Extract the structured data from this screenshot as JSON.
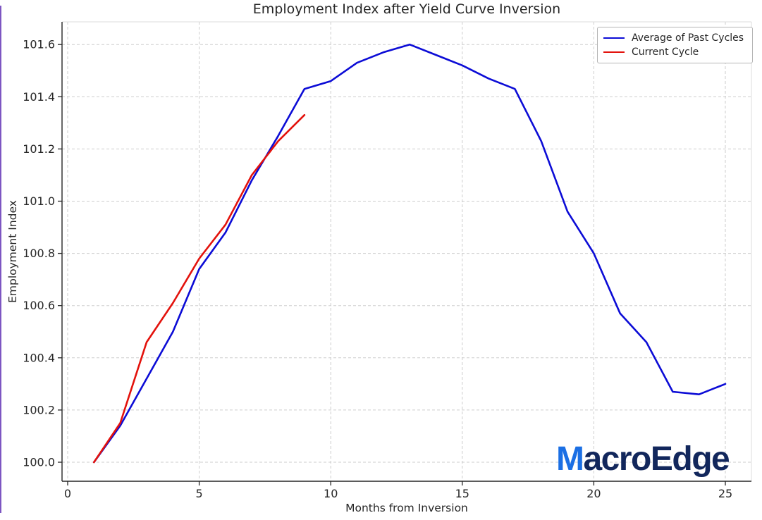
{
  "frame": {
    "accent_edge_color": "#7d56c2"
  },
  "watermark": {
    "prefix": "M",
    "rest": "acroEdge",
    "prefix_color": "#1b6fe4",
    "rest_color": "#12275c"
  },
  "chart_data": {
    "type": "line",
    "title": "Employment Index after Yield Curve Inversion",
    "xlabel": "Months from Inversion",
    "ylabel": "Employment Index",
    "xlim": [
      -0.2,
      26
    ],
    "ylim": [
      99.93,
      101.69
    ],
    "x_ticks": [
      0,
      5,
      10,
      15,
      20,
      25
    ],
    "y_ticks": [
      100.0,
      100.2,
      100.4,
      100.6,
      100.8,
      101.0,
      101.2,
      101.4,
      101.6
    ],
    "x_tick_labels": [
      "0",
      "5",
      "10",
      "15",
      "20",
      "25"
    ],
    "y_tick_labels": [
      "100.0",
      "100.2",
      "100.4",
      "100.6",
      "100.8",
      "101.0",
      "101.2",
      "101.4",
      "101.6"
    ],
    "grid": true,
    "grid_style": "dashed",
    "legend_position": "upper right",
    "series": [
      {
        "name": "Average of Past Cycles",
        "color": "#0c0cd6",
        "x": [
          1,
          2,
          3,
          4,
          5,
          6,
          7,
          8,
          9,
          10,
          11,
          12,
          13,
          14,
          15,
          16,
          17,
          18,
          19,
          20,
          21,
          22,
          23,
          24,
          25
        ],
        "values": [
          100.0,
          100.14,
          100.32,
          100.5,
          100.74,
          100.88,
          101.08,
          101.25,
          101.43,
          101.46,
          101.53,
          101.57,
          101.6,
          101.56,
          101.52,
          101.47,
          101.43,
          101.23,
          100.96,
          100.8,
          100.57,
          100.46,
          100.27,
          100.26,
          100.3
        ]
      },
      {
        "name": "Current Cycle",
        "color": "#e3120c",
        "x": [
          1,
          2,
          3,
          4,
          5,
          6,
          7,
          8,
          9
        ],
        "values": [
          100.0,
          100.15,
          100.46,
          100.61,
          100.78,
          100.91,
          101.1,
          101.23,
          101.33
        ]
      }
    ]
  }
}
